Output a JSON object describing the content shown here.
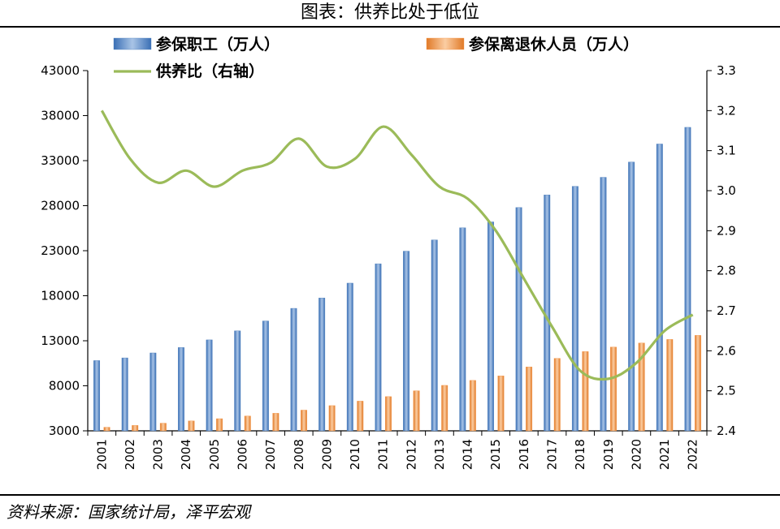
{
  "header": {
    "title": "图表：供养比处于低位"
  },
  "footer": {
    "source": "资料来源：国家统计局，泽平宏观"
  },
  "colors": {
    "bar_workers": "#4F81BD",
    "bar_retirees": "#F79646",
    "line_ratio": "#9BBB59"
  },
  "chart_data": {
    "type": "bar",
    "categories": [
      "2001",
      "2002",
      "2003",
      "2004",
      "2005",
      "2006",
      "2007",
      "2008",
      "2009",
      "2010",
      "2011",
      "2012",
      "2013",
      "2014",
      "2015",
      "2016",
      "2017",
      "2018",
      "2019",
      "2020",
      "2021",
      "2022"
    ],
    "series": [
      {
        "name": "参保职工（万人）",
        "axis": "left",
        "kind": "bar",
        "values": [
          10800,
          11100,
          11650,
          12250,
          13100,
          14100,
          15200,
          16600,
          17750,
          19400,
          21550,
          22950,
          24200,
          25550,
          26200,
          27800,
          29200,
          30150,
          31150,
          32850,
          34850,
          36700
        ]
      },
      {
        "name": "参保离退休人员（万人）",
        "axis": "left",
        "kind": "bar",
        "values": [
          3400,
          3600,
          3850,
          4100,
          4350,
          4650,
          4950,
          5300,
          5800,
          6300,
          6800,
          7450,
          8050,
          8600,
          9100,
          10100,
          11050,
          11800,
          12300,
          12750,
          13150,
          13600
        ]
      },
      {
        "name": "供养比（右轴）",
        "axis": "right",
        "kind": "line",
        "values": [
          3.2,
          3.08,
          3.02,
          3.05,
          3.01,
          3.05,
          3.07,
          3.13,
          3.06,
          3.08,
          3.16,
          3.09,
          3.01,
          2.98,
          2.9,
          2.78,
          2.66,
          2.55,
          2.53,
          2.57,
          2.65,
          2.69
        ]
      }
    ],
    "yleft": {
      "ylim": [
        3000,
        43000
      ],
      "ticks": [
        3000,
        8000,
        13000,
        18000,
        23000,
        28000,
        33000,
        38000,
        43000
      ]
    },
    "yright": {
      "ylim": [
        2.4,
        3.3
      ],
      "ticks": [
        "2.4",
        "2.5",
        "2.6",
        "2.7",
        "2.8",
        "2.9",
        "3.0",
        "3.1",
        "3.2",
        "3.3"
      ]
    },
    "legend": "top-left",
    "grid": false
  }
}
